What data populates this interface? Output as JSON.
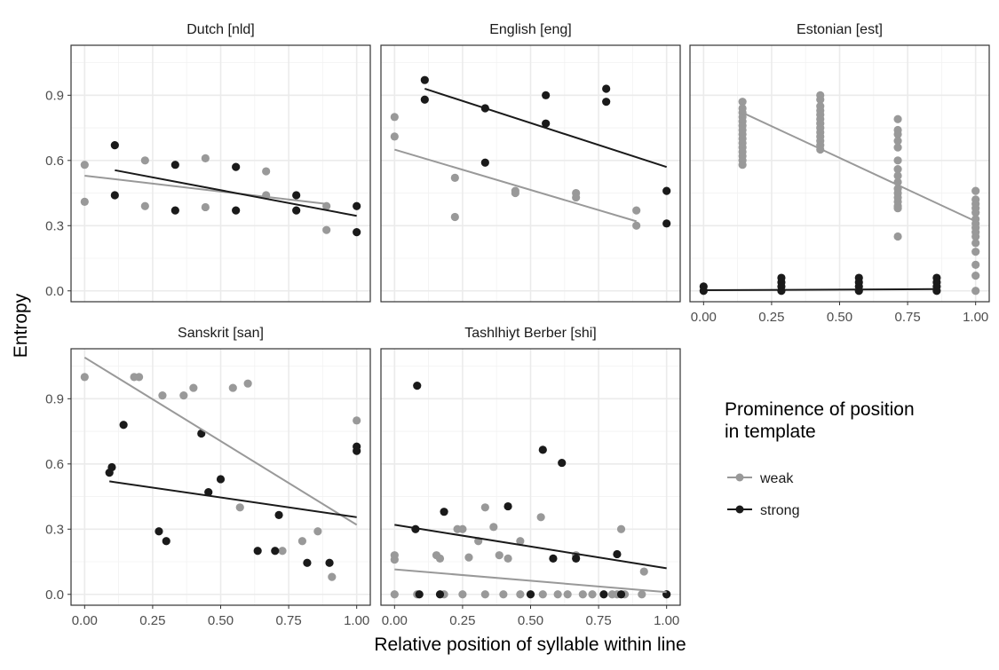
{
  "chart_data": {
    "type": "scatter",
    "xlabel": "Relative position of syllable within line",
    "ylabel": "Entropy",
    "xlim": [
      -0.05,
      1.05
    ],
    "ylim": [
      -0.05,
      1.13
    ],
    "x_ticks": [
      "0.00",
      "0.25",
      "0.50",
      "0.75",
      "1.00"
    ],
    "y_ticks": [
      "0.0",
      "0.3",
      "0.6",
      "0.9"
    ],
    "grid": true,
    "legend": {
      "title_line1": "Prominence of position",
      "title_line2": "in template",
      "position": "right",
      "items": [
        {
          "label": "weak",
          "color": "#999999"
        },
        {
          "label": "strong",
          "color": "#1a1a1a"
        }
      ]
    },
    "colors": {
      "weak": "#999999",
      "strong": "#1a1a1a"
    },
    "panels": [
      {
        "title": "Dutch [nld]",
        "weak_points": [
          [
            0.0,
            0.58
          ],
          [
            0.0,
            0.41
          ],
          [
            0.222,
            0.6
          ],
          [
            0.222,
            0.39
          ],
          [
            0.444,
            0.61
          ],
          [
            0.444,
            0.385
          ],
          [
            0.667,
            0.55
          ],
          [
            0.667,
            0.44
          ],
          [
            0.889,
            0.39
          ],
          [
            0.889,
            0.28
          ]
        ],
        "strong_points": [
          [
            0.111,
            0.67
          ],
          [
            0.111,
            0.44
          ],
          [
            0.333,
            0.58
          ],
          [
            0.333,
            0.37
          ],
          [
            0.556,
            0.57
          ],
          [
            0.556,
            0.37
          ],
          [
            0.778,
            0.44
          ],
          [
            0.778,
            0.37
          ],
          [
            1.0,
            0.39
          ],
          [
            1.0,
            0.27
          ]
        ],
        "weak_fit": [
          [
            0.0,
            0.53
          ],
          [
            0.889,
            0.4
          ]
        ],
        "strong_fit": [
          [
            0.111,
            0.555
          ],
          [
            1.0,
            0.345
          ]
        ]
      },
      {
        "title": "English [eng]",
        "weak_points": [
          [
            0.0,
            0.8
          ],
          [
            0.0,
            0.71
          ],
          [
            0.222,
            0.52
          ],
          [
            0.222,
            0.34
          ],
          [
            0.444,
            0.46
          ],
          [
            0.444,
            0.45
          ],
          [
            0.667,
            0.45
          ],
          [
            0.667,
            0.43
          ],
          [
            0.889,
            0.37
          ],
          [
            0.889,
            0.3
          ]
        ],
        "strong_points": [
          [
            0.111,
            0.97
          ],
          [
            0.111,
            0.88
          ],
          [
            0.333,
            0.84
          ],
          [
            0.333,
            0.59
          ],
          [
            0.556,
            0.9
          ],
          [
            0.556,
            0.77
          ],
          [
            0.778,
            0.93
          ],
          [
            0.778,
            0.87
          ],
          [
            1.0,
            0.46
          ],
          [
            1.0,
            0.31
          ]
        ],
        "weak_fit": [
          [
            0.0,
            0.65
          ],
          [
            0.889,
            0.32
          ]
        ],
        "strong_fit": [
          [
            0.111,
            0.93
          ],
          [
            1.0,
            0.57
          ]
        ]
      },
      {
        "title": "Estonian [est]",
        "weak_points": [
          [
            0.143,
            0.87
          ],
          [
            0.143,
            0.84
          ],
          [
            0.143,
            0.82
          ],
          [
            0.143,
            0.8
          ],
          [
            0.143,
            0.78
          ],
          [
            0.143,
            0.76
          ],
          [
            0.143,
            0.74
          ],
          [
            0.143,
            0.72
          ],
          [
            0.143,
            0.7
          ],
          [
            0.143,
            0.68
          ],
          [
            0.143,
            0.66
          ],
          [
            0.143,
            0.64
          ],
          [
            0.143,
            0.62
          ],
          [
            0.143,
            0.6
          ],
          [
            0.143,
            0.58
          ],
          [
            0.429,
            0.9
          ],
          [
            0.429,
            0.88
          ],
          [
            0.429,
            0.85
          ],
          [
            0.429,
            0.83
          ],
          [
            0.429,
            0.81
          ],
          [
            0.429,
            0.79
          ],
          [
            0.429,
            0.77
          ],
          [
            0.429,
            0.75
          ],
          [
            0.429,
            0.73
          ],
          [
            0.429,
            0.71
          ],
          [
            0.429,
            0.69
          ],
          [
            0.429,
            0.67
          ],
          [
            0.429,
            0.65
          ],
          [
            0.714,
            0.79
          ],
          [
            0.714,
            0.74
          ],
          [
            0.714,
            0.72
          ],
          [
            0.714,
            0.69
          ],
          [
            0.714,
            0.66
          ],
          [
            0.714,
            0.6
          ],
          [
            0.714,
            0.56
          ],
          [
            0.714,
            0.53
          ],
          [
            0.714,
            0.5
          ],
          [
            0.714,
            0.47
          ],
          [
            0.714,
            0.45
          ],
          [
            0.714,
            0.43
          ],
          [
            0.714,
            0.41
          ],
          [
            0.714,
            0.39
          ],
          [
            0.714,
            0.38
          ],
          [
            0.714,
            0.25
          ],
          [
            1.0,
            0.46
          ],
          [
            1.0,
            0.42
          ],
          [
            1.0,
            0.4
          ],
          [
            1.0,
            0.38
          ],
          [
            1.0,
            0.36
          ],
          [
            1.0,
            0.33
          ],
          [
            1.0,
            0.31
          ],
          [
            1.0,
            0.29
          ],
          [
            1.0,
            0.27
          ],
          [
            1.0,
            0.25
          ],
          [
            1.0,
            0.22
          ],
          [
            1.0,
            0.18
          ],
          [
            1.0,
            0.12
          ],
          [
            1.0,
            0.07
          ],
          [
            1.0,
            0.0
          ]
        ],
        "strong_points": [
          [
            0.0,
            0.02
          ],
          [
            0.0,
            0.0
          ],
          [
            0.286,
            0.06
          ],
          [
            0.286,
            0.04
          ],
          [
            0.286,
            0.02
          ],
          [
            0.286,
            0.0
          ],
          [
            0.571,
            0.06
          ],
          [
            0.571,
            0.04
          ],
          [
            0.571,
            0.02
          ],
          [
            0.571,
            0.0
          ],
          [
            0.857,
            0.06
          ],
          [
            0.857,
            0.04
          ],
          [
            0.857,
            0.02
          ],
          [
            0.857,
            0.0
          ]
        ],
        "weak_fit": [
          [
            0.143,
            0.82
          ],
          [
            1.0,
            0.32
          ]
        ],
        "strong_fit": [
          [
            0.0,
            0.003
          ],
          [
            0.857,
            0.008
          ]
        ]
      },
      {
        "title": "Sanskrit [san]",
        "weak_points": [
          [
            0.0,
            1.0
          ],
          [
            0.182,
            1.0
          ],
          [
            0.2,
            1.0
          ],
          [
            0.286,
            0.915
          ],
          [
            0.364,
            0.915
          ],
          [
            0.4,
            0.95
          ],
          [
            0.545,
            0.95
          ],
          [
            0.6,
            0.97
          ],
          [
            0.571,
            0.4
          ],
          [
            0.727,
            0.2
          ],
          [
            0.8,
            0.245
          ],
          [
            0.857,
            0.29
          ],
          [
            0.909,
            0.08
          ],
          [
            1.0,
            0.8
          ]
        ],
        "strong_points": [
          [
            0.091,
            0.56
          ],
          [
            0.1,
            0.585
          ],
          [
            0.143,
            0.78
          ],
          [
            0.273,
            0.29
          ],
          [
            0.3,
            0.245
          ],
          [
            0.429,
            0.74
          ],
          [
            0.455,
            0.47
          ],
          [
            0.5,
            0.53
          ],
          [
            0.636,
            0.2
          ],
          [
            0.7,
            0.2
          ],
          [
            0.714,
            0.365
          ],
          [
            0.818,
            0.145
          ],
          [
            0.9,
            0.145
          ],
          [
            1.0,
            0.68
          ],
          [
            1.0,
            0.66
          ]
        ],
        "weak_fit": [
          [
            0.0,
            1.09
          ],
          [
            1.0,
            0.32
          ]
        ],
        "strong_fit": [
          [
            0.091,
            0.52
          ],
          [
            1.0,
            0.355
          ]
        ]
      },
      {
        "title": "Tashlhiyt Berber [shi]",
        "weak_points": [
          [
            0.0,
            0.18
          ],
          [
            0.0,
            0.16
          ],
          [
            0.0,
            0.0
          ],
          [
            0.083,
            0.0
          ],
          [
            0.154,
            0.18
          ],
          [
            0.167,
            0.165
          ],
          [
            0.182,
            0.0
          ],
          [
            0.231,
            0.3
          ],
          [
            0.25,
            0.3
          ],
          [
            0.273,
            0.17
          ],
          [
            0.25,
            0.0
          ],
          [
            0.308,
            0.245
          ],
          [
            0.333,
            0.4
          ],
          [
            0.333,
            0.0
          ],
          [
            0.364,
            0.31
          ],
          [
            0.385,
            0.18
          ],
          [
            0.417,
            0.165
          ],
          [
            0.4,
            0.0
          ],
          [
            0.462,
            0.245
          ],
          [
            0.462,
            0.0
          ],
          [
            0.538,
            0.355
          ],
          [
            0.545,
            0.0
          ],
          [
            0.6,
            0.0
          ],
          [
            0.636,
            0.0
          ],
          [
            0.667,
            0.18
          ],
          [
            0.692,
            0.0
          ],
          [
            0.727,
            0.0
          ],
          [
            0.8,
            0.0
          ],
          [
            0.818,
            0.0
          ],
          [
            0.833,
            0.3
          ],
          [
            0.846,
            0.0
          ],
          [
            0.909,
            0.0
          ],
          [
            0.917,
            0.105
          ],
          [
            1.0,
            0.0
          ]
        ],
        "strong_points": [
          [
            0.077,
            0.3
          ],
          [
            0.083,
            0.96
          ],
          [
            0.091,
            0.0
          ],
          [
            0.167,
            0.0
          ],
          [
            0.182,
            0.38
          ],
          [
            0.417,
            0.405
          ],
          [
            0.5,
            0.0
          ],
          [
            0.545,
            0.665
          ],
          [
            0.583,
            0.165
          ],
          [
            0.615,
            0.605
          ],
          [
            0.667,
            0.165
          ],
          [
            0.769,
            0.0
          ],
          [
            0.818,
            0.185
          ],
          [
            0.833,
            0.0
          ],
          [
            1.0,
            0.0
          ]
        ],
        "weak_fit": [
          [
            0.0,
            0.115
          ],
          [
            1.0,
            0.01
          ]
        ],
        "strong_fit": [
          [
            0.0,
            0.32
          ],
          [
            1.0,
            0.12
          ]
        ]
      }
    ]
  }
}
